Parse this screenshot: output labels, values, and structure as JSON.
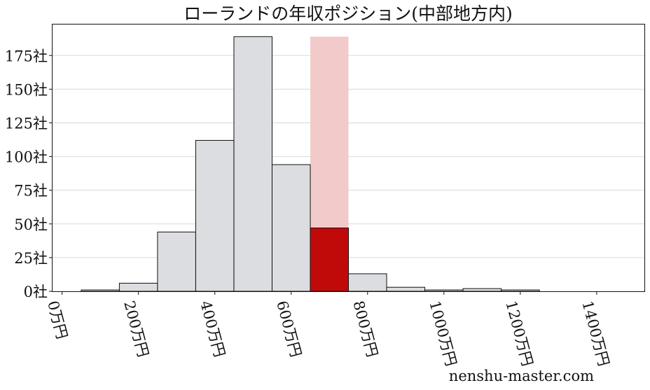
{
  "chart_data": {
    "type": "bar",
    "title": "ローランドの年収ポジション(中部地方内)",
    "xlabel": "",
    "ylabel": "",
    "bin_width": 100,
    "bins": [
      {
        "x0": 50,
        "x1": 150,
        "value": 1
      },
      {
        "x0": 150,
        "x1": 250,
        "value": 6
      },
      {
        "x0": 250,
        "x1": 350,
        "value": 44
      },
      {
        "x0": 350,
        "x1": 450,
        "value": 112
      },
      {
        "x0": 450,
        "x1": 550,
        "value": 189
      },
      {
        "x0": 550,
        "x1": 650,
        "value": 94
      },
      {
        "x0": 650,
        "x1": 750,
        "value": 47,
        "highlight": true
      },
      {
        "x0": 750,
        "x1": 850,
        "value": 13
      },
      {
        "x0": 850,
        "x1": 950,
        "value": 3
      },
      {
        "x0": 950,
        "x1": 1050,
        "value": 1
      },
      {
        "x0": 1050,
        "x1": 1150,
        "value": 2
      },
      {
        "x0": 1150,
        "x1": 1250,
        "value": 1
      }
    ],
    "highlight_band": {
      "x0": 650,
      "x1": 750,
      "value": 189
    },
    "xlim": [
      -25,
      1525
    ],
    "ylim": [
      0,
      198
    ],
    "x_ticks": [
      {
        "value": 0,
        "label": "0万円"
      },
      {
        "value": 200,
        "label": "200万円"
      },
      {
        "value": 400,
        "label": "400万円"
      },
      {
        "value": 600,
        "label": "600万円"
      },
      {
        "value": 800,
        "label": "800万円"
      },
      {
        "value": 1000,
        "label": "1000万円"
      },
      {
        "value": 1200,
        "label": "1200万円"
      },
      {
        "value": 1400,
        "label": "1400万円"
      }
    ],
    "y_ticks": [
      {
        "value": 0,
        "label": "0社"
      },
      {
        "value": 25,
        "label": "25社"
      },
      {
        "value": 50,
        "label": "50社"
      },
      {
        "value": 75,
        "label": "75社"
      },
      {
        "value": 100,
        "label": "100社"
      },
      {
        "value": 125,
        "label": "125社"
      },
      {
        "value": 150,
        "label": "150社"
      },
      {
        "value": 175,
        "label": "175社"
      }
    ],
    "grid": "horizontal",
    "colors": {
      "bar": "#dcdde0",
      "highlight_bar": "#c00a0a",
      "highlight_band": "#f2caca"
    }
  },
  "watermark": "nenshu-master.com"
}
